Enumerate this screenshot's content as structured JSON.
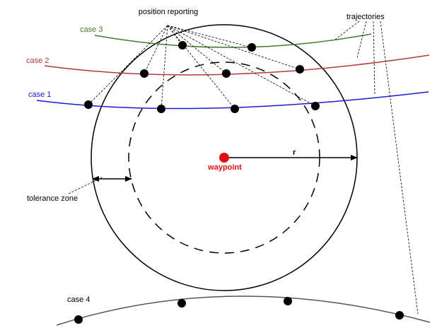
{
  "labels": {
    "position_reporting": "position reporting",
    "trajectories": "trajectories",
    "case1": "case 1",
    "case2": "case 2",
    "case3": "case 3",
    "case4": "case 4",
    "waypoint": "waypoint",
    "radius": "r",
    "tolerance_zone": "tolerance zone"
  },
  "colors": {
    "case1": "#1a1adc",
    "case2": "#b03a3a",
    "case3": "#4a7a2a",
    "case4": "#555555",
    "waypoint": "#e01010",
    "ink": "#000000"
  }
}
